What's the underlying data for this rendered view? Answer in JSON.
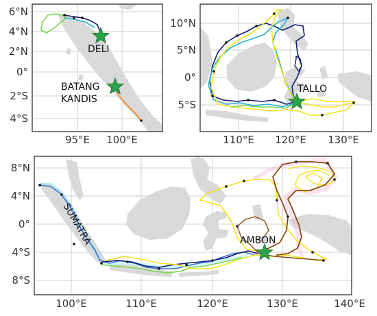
{
  "panels": {
    "top_left": {
      "lat_ticks": [
        "6°N",
        "4°N",
        "2°N",
        "0°",
        "2°S",
        "4°S"
      ],
      "lon_ticks": [
        "95°E",
        "100°E"
      ],
      "places": [
        {
          "label_lines": [
            "DELI"
          ]
        },
        {
          "label_lines": [
            "BATANG",
            "KANDIS"
          ]
        }
      ]
    },
    "top_right": {
      "lat_ticks": [
        "10°N",
        "5°N",
        "0°",
        "5°S"
      ],
      "lon_ticks": [
        "110°E",
        "120°E",
        "130°E"
      ],
      "places": [
        {
          "label_lines": [
            "TALLO"
          ]
        }
      ]
    },
    "bottom": {
      "lat_ticks": [
        "8°N",
        "4°N",
        "0°",
        "4°S",
        "8°S"
      ],
      "lon_ticks": [
        "100°E",
        "110°E",
        "120°E",
        "130°E",
        "140°E"
      ],
      "region_label": "SUMATRA",
      "places": [
        {
          "label_lines": [
            "AMBON"
          ]
        }
      ]
    }
  },
  "colors": {
    "land": "#d9d9d9",
    "star": "#2ca24a",
    "track_navy": "#101a6e",
    "track_cyan": "#23b0d6",
    "track_yellow": "#f2e21c",
    "track_green": "#78d64a",
    "track_blue": "#3a6ed0",
    "track_brown": "#8a4a12",
    "track_orange": "#f08a1c"
  },
  "icons": [
    "star-marker-icon"
  ]
}
